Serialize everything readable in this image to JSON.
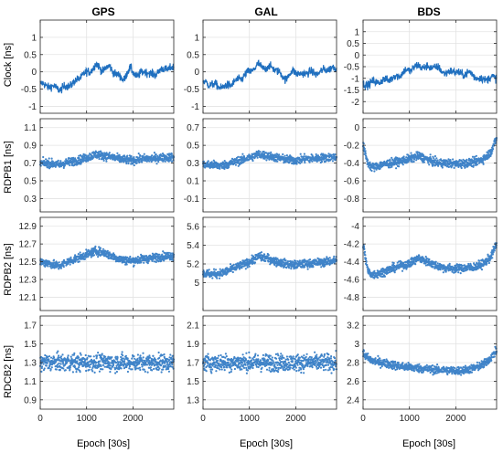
{
  "figure": {
    "columns": [
      "GPS",
      "GAL",
      "BDS"
    ],
    "row_labels": [
      "Clock [ns]",
      "RDPB1 [ns]",
      "RDPB2 [ns]",
      "RDCB2 [ns]"
    ],
    "xlabel": "Epoch [30s]",
    "series_color": "#1f6fbf"
  },
  "chart_data": [
    {
      "type": "scatter",
      "column": "GPS",
      "ylabel": "Clock [ns]",
      "xlim": [
        0,
        2880
      ],
      "ylim": [
        -1.2,
        1.5
      ],
      "yticks": [
        -1,
        -0.5,
        0,
        0.5,
        1
      ],
      "xticks": [
        0,
        1000,
        2000
      ],
      "x": [
        0,
        150,
        300,
        450,
        600,
        750,
        900,
        1050,
        1200,
        1350,
        1500,
        1650,
        1800,
        1950,
        2100,
        2250,
        2400,
        2550,
        2700,
        2880
      ],
      "y": [
        -0.35,
        -0.4,
        -0.45,
        -0.5,
        -0.4,
        -0.3,
        -0.1,
        0.0,
        0.2,
        0.05,
        0.15,
        -0.1,
        -0.2,
        0.1,
        -0.15,
        0.05,
        -0.1,
        0.0,
        0.1,
        0.1
      ],
      "grid": true
    },
    {
      "type": "scatter",
      "column": "GAL",
      "ylabel": "Clock [ns]",
      "xlim": [
        0,
        2880
      ],
      "ylim": [
        -1.2,
        1.5
      ],
      "yticks": [
        -1,
        -0.5,
        0,
        0.5,
        1
      ],
      "xticks": [
        0,
        1000,
        2000
      ],
      "x": [
        0,
        150,
        300,
        450,
        600,
        750,
        900,
        1050,
        1200,
        1350,
        1500,
        1650,
        1800,
        1950,
        2100,
        2250,
        2400,
        2550,
        2700,
        2880
      ],
      "y": [
        -0.3,
        -0.35,
        -0.4,
        -0.45,
        -0.35,
        -0.25,
        -0.1,
        0.05,
        0.2,
        0.1,
        0.15,
        -0.05,
        -0.2,
        0.05,
        -0.1,
        0.0,
        -0.05,
        0.0,
        0.1,
        0.1
      ],
      "grid": true
    },
    {
      "type": "scatter",
      "column": "BDS",
      "ylabel": "Clock [ns]",
      "xlim": [
        0,
        2880
      ],
      "ylim": [
        -2.5,
        1.5
      ],
      "yticks": [
        -2,
        -1.5,
        -1,
        -0.5,
        0,
        0.5,
        1
      ],
      "xticks": [
        0,
        1000,
        2000
      ],
      "x": [
        0,
        150,
        300,
        450,
        600,
        750,
        900,
        1050,
        1200,
        1350,
        1500,
        1650,
        1800,
        1950,
        2100,
        2250,
        2400,
        2550,
        2700,
        2880
      ],
      "y": [
        -1.3,
        -1.2,
        -1.15,
        -1.1,
        -1.0,
        -0.9,
        -0.7,
        -0.6,
        -0.45,
        -0.55,
        -0.5,
        -0.6,
        -0.8,
        -0.65,
        -0.85,
        -0.75,
        -0.9,
        -1.05,
        -1.0,
        -0.95
      ],
      "grid": true
    },
    {
      "type": "scatter",
      "column": "GPS",
      "ylabel": "RDPB1 [ns]",
      "xlim": [
        0,
        2880
      ],
      "ylim": [
        0.15,
        1.2
      ],
      "yticks": [
        0.3,
        0.5,
        0.7,
        0.9,
        1.1
      ],
      "xticks": [
        0,
        1000,
        2000
      ],
      "x": [
        0,
        200,
        400,
        600,
        800,
        1000,
        1200,
        1400,
        1600,
        1800,
        2000,
        2200,
        2400,
        2600,
        2880
      ],
      "y": [
        0.7,
        0.7,
        0.68,
        0.71,
        0.73,
        0.76,
        0.8,
        0.78,
        0.76,
        0.74,
        0.73,
        0.75,
        0.75,
        0.76,
        0.77
      ],
      "grid": true
    },
    {
      "type": "scatter",
      "column": "GAL",
      "ylabel": "RDPB1 [ns]",
      "xlim": [
        0,
        2880
      ],
      "ylim": [
        -0.25,
        0.8
      ],
      "yticks": [
        -0.1,
        0.1,
        0.3,
        0.5,
        0.7
      ],
      "xticks": [
        0,
        1000,
        2000
      ],
      "x": [
        0,
        200,
        400,
        600,
        800,
        1000,
        1200,
        1400,
        1600,
        1800,
        2000,
        2200,
        2400,
        2600,
        2880
      ],
      "y": [
        0.28,
        0.28,
        0.27,
        0.3,
        0.33,
        0.36,
        0.4,
        0.38,
        0.36,
        0.34,
        0.33,
        0.35,
        0.35,
        0.36,
        0.37
      ],
      "grid": true
    },
    {
      "type": "scatter",
      "column": "BDS",
      "ylabel": "RDPB1 [ns]",
      "xlim": [
        0,
        2880
      ],
      "ylim": [
        -0.95,
        0.1
      ],
      "yticks": [
        -0.8,
        -0.6,
        -0.4,
        -0.2,
        0
      ],
      "xticks": [
        0,
        1000,
        2000
      ],
      "x": [
        0,
        100,
        200,
        400,
        600,
        800,
        1000,
        1200,
        1400,
        1600,
        1800,
        2000,
        2200,
        2400,
        2600,
        2750,
        2880
      ],
      "y": [
        -0.2,
        -0.4,
        -0.45,
        -0.42,
        -0.4,
        -0.38,
        -0.35,
        -0.32,
        -0.36,
        -0.4,
        -0.4,
        -0.41,
        -0.4,
        -0.39,
        -0.35,
        -0.28,
        -0.12
      ],
      "grid": true
    },
    {
      "type": "scatter",
      "column": "GPS",
      "ylabel": "RDPB2 [ns]",
      "xlim": [
        0,
        2880
      ],
      "ylim": [
        11.95,
        13.0
      ],
      "yticks": [
        12.1,
        12.3,
        12.5,
        12.7,
        12.9
      ],
      "xticks": [
        0,
        1000,
        2000
      ],
      "x": [
        0,
        200,
        400,
        600,
        800,
        1000,
        1200,
        1400,
        1600,
        1800,
        2000,
        2200,
        2400,
        2600,
        2880
      ],
      "y": [
        12.5,
        12.48,
        12.45,
        12.5,
        12.54,
        12.58,
        12.62,
        12.6,
        12.55,
        12.52,
        12.51,
        12.53,
        12.54,
        12.56,
        12.57
      ],
      "grid": true
    },
    {
      "type": "scatter",
      "column": "GAL",
      "ylabel": "RDPB2 [ns]",
      "xlim": [
        0,
        2880
      ],
      "ylim": [
        4.7,
        5.7
      ],
      "yticks": [
        5,
        5.2,
        5.4,
        5.6
      ],
      "xticks": [
        0,
        1000,
        2000
      ],
      "x": [
        0,
        200,
        400,
        600,
        800,
        1000,
        1200,
        1400,
        1600,
        1800,
        2000,
        2200,
        2400,
        2600,
        2880
      ],
      "y": [
        5.1,
        5.09,
        5.1,
        5.14,
        5.18,
        5.22,
        5.28,
        5.26,
        5.22,
        5.2,
        5.19,
        5.2,
        5.21,
        5.22,
        5.24
      ],
      "grid": true
    },
    {
      "type": "scatter",
      "column": "BDS",
      "ylabel": "RDPB2 [ns]",
      "xlim": [
        0,
        2880
      ],
      "ylim": [
        -4.95,
        -3.9
      ],
      "yticks": [
        -4.8,
        -4.6,
        -4.4,
        -4.2,
        -4
      ],
      "xticks": [
        0,
        1000,
        2000
      ],
      "x": [
        0,
        100,
        200,
        400,
        600,
        800,
        1000,
        1200,
        1400,
        1600,
        1800,
        2000,
        2200,
        2400,
        2600,
        2750,
        2880
      ],
      "y": [
        -4.2,
        -4.5,
        -4.55,
        -4.52,
        -4.48,
        -4.45,
        -4.42,
        -4.36,
        -4.4,
        -4.45,
        -4.47,
        -4.48,
        -4.47,
        -4.46,
        -4.42,
        -4.35,
        -4.2
      ],
      "grid": true
    },
    {
      "type": "scatter",
      "column": "GPS",
      "ylabel": "RDCB2 [ns]",
      "xlim": [
        0,
        2880
      ],
      "ylim": [
        0.8,
        1.8
      ],
      "yticks": [
        0.9,
        1.1,
        1.3,
        1.5,
        1.7
      ],
      "xticks": [
        0,
        1000,
        2000
      ],
      "x": [
        0,
        400,
        800,
        1200,
        1600,
        2000,
        2400,
        2880
      ],
      "y": [
        1.3,
        1.3,
        1.3,
        1.3,
        1.3,
        1.3,
        1.3,
        1.3
      ],
      "grid": true
    },
    {
      "type": "scatter",
      "column": "GAL",
      "ylabel": "RDCB2 [ns]",
      "xlim": [
        0,
        2880
      ],
      "ylim": [
        1.2,
        2.2
      ],
      "yticks": [
        1.3,
        1.5,
        1.7,
        1.9,
        2.1
      ],
      "xticks": [
        0,
        1000,
        2000
      ],
      "x": [
        0,
        400,
        800,
        1200,
        1600,
        2000,
        2400,
        2880
      ],
      "y": [
        1.7,
        1.7,
        1.7,
        1.7,
        1.7,
        1.7,
        1.7,
        1.7
      ],
      "grid": true
    },
    {
      "type": "scatter",
      "column": "BDS",
      "ylabel": "RDCB2 [ns]",
      "xlim": [
        0,
        2880
      ],
      "ylim": [
        2.3,
        3.3
      ],
      "yticks": [
        2.4,
        2.6,
        2.8,
        3,
        3.2
      ],
      "xticks": [
        0,
        1000,
        2000
      ],
      "x": [
        0,
        100,
        200,
        400,
        600,
        800,
        1000,
        1200,
        1400,
        1600,
        1800,
        2000,
        2200,
        2400,
        2600,
        2750,
        2880
      ],
      "y": [
        2.9,
        2.85,
        2.82,
        2.8,
        2.78,
        2.76,
        2.75,
        2.74,
        2.73,
        2.72,
        2.72,
        2.71,
        2.72,
        2.74,
        2.78,
        2.85,
        2.93
      ],
      "grid": true
    }
  ]
}
